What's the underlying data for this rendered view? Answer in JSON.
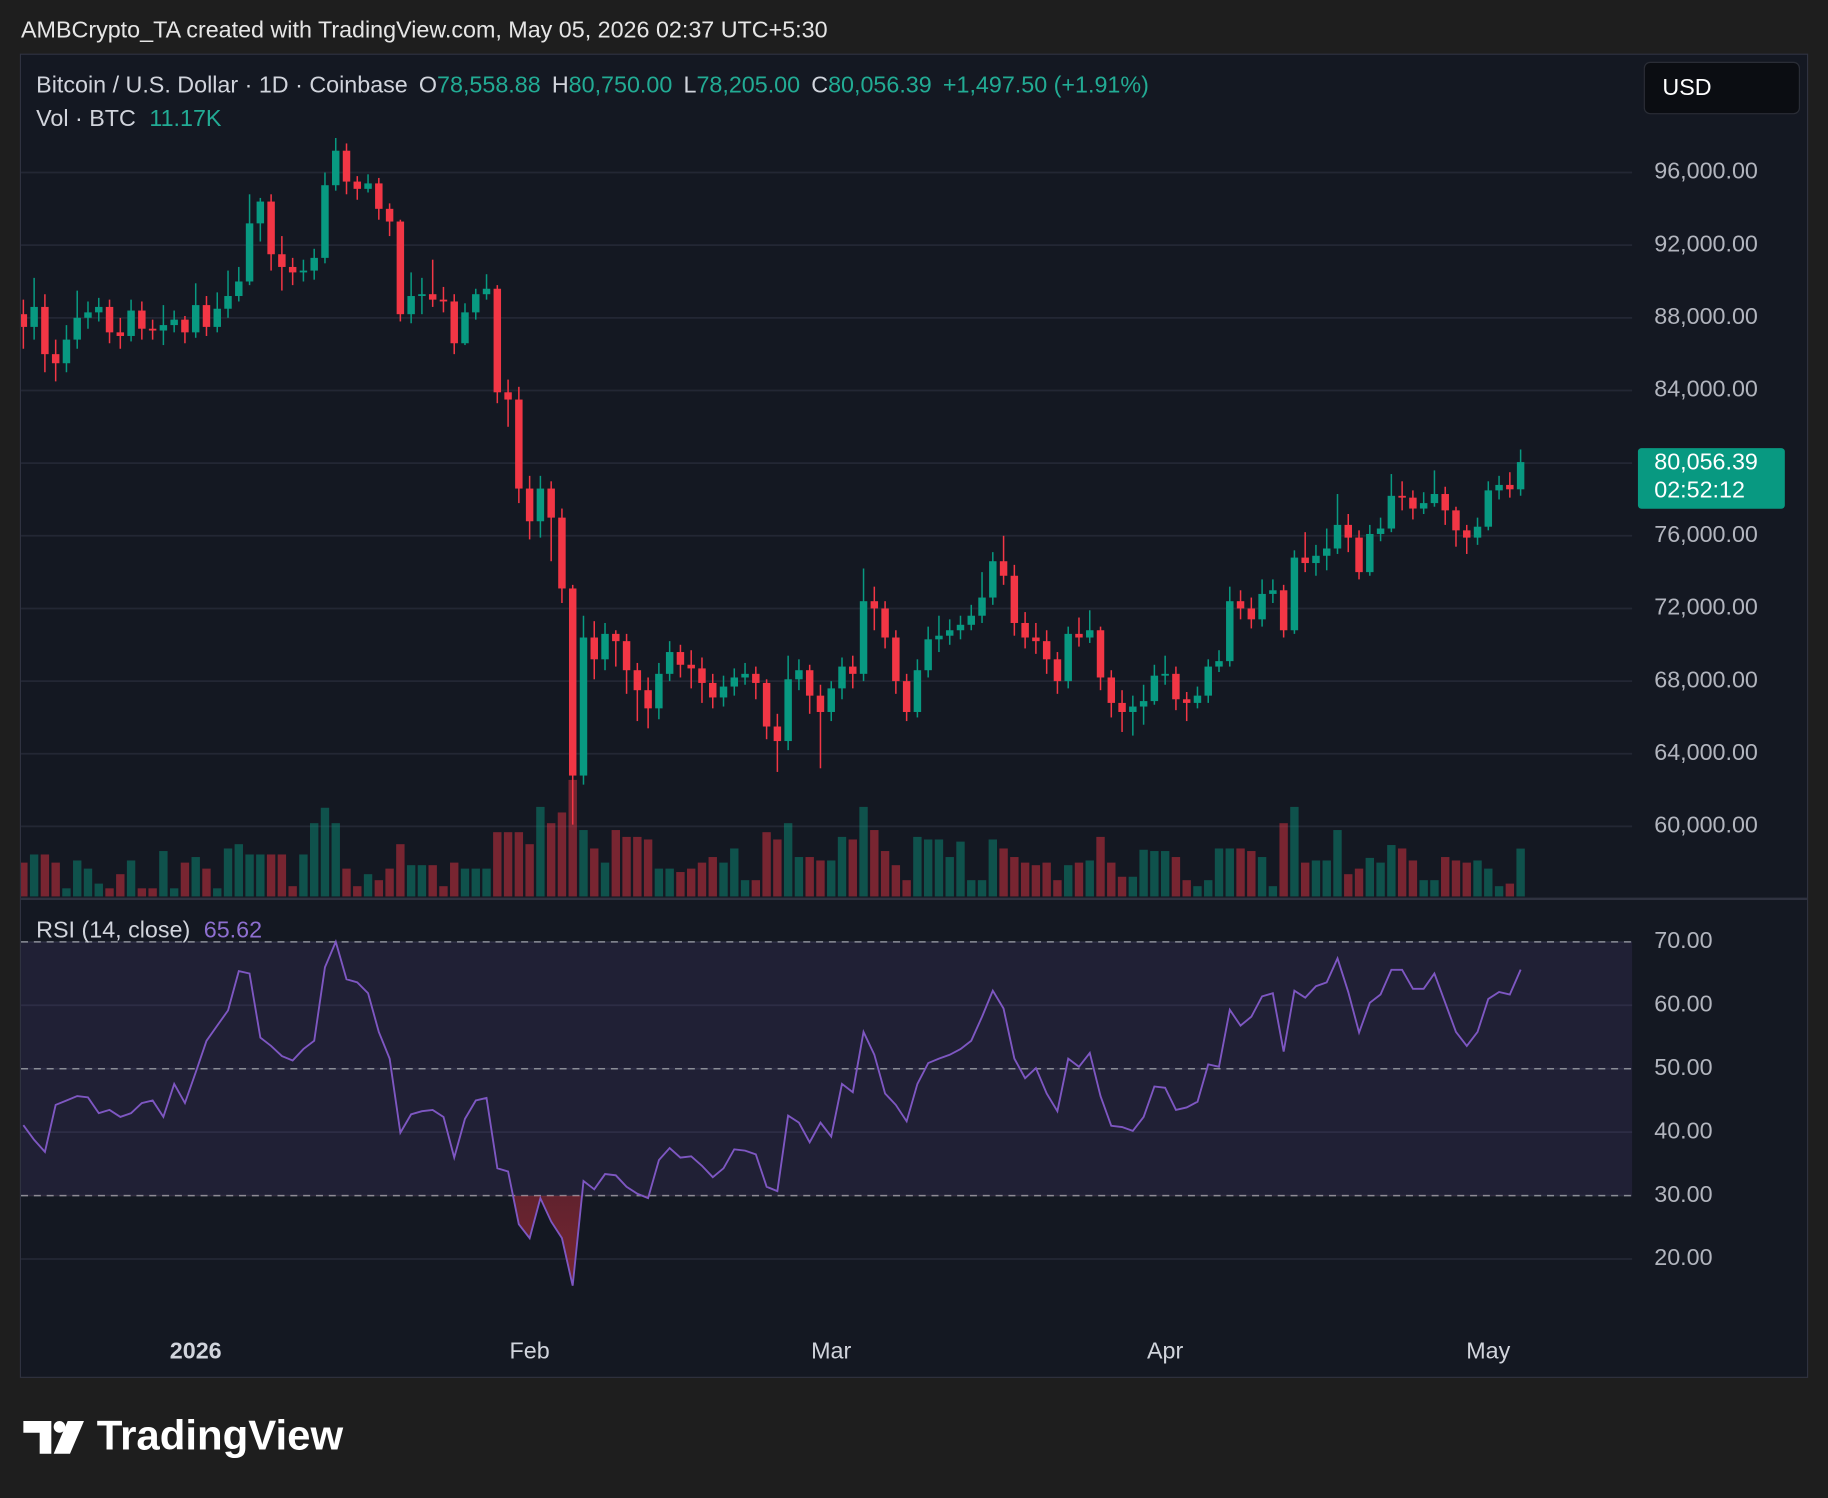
{
  "attribution": "AMBCrypto_TA created with TradingView.com, May 05, 2026 02:37 UTC+5:30",
  "brand": "TradingView",
  "chart_data": {
    "type": "candlestick",
    "legend": {
      "symbol": "Bitcoin / U.S. Dollar · 1D · Coinbase",
      "o": "O",
      "open": "78,558.88",
      "h": "H",
      "high": "80,750.00",
      "l": "L",
      "low": "78,205.00",
      "c": "C",
      "close": "80,056.39",
      "change": "+1,497.50 (+1.91%)",
      "volume_name": "Vol · BTC",
      "volume": "11.17K"
    },
    "currency": "USD",
    "price_label": "80,056.39",
    "countdown": "02:52:12",
    "up_color": "#089981",
    "down_color": "#f23645",
    "grid": true,
    "categories": [
      null,
      null,
      null,
      null,
      null,
      null,
      null,
      null,
      null,
      null,
      null,
      null,
      null,
      null,
      null,
      null,
      "2026",
      null,
      null,
      null,
      null,
      null,
      null,
      null,
      null,
      null,
      null,
      null,
      null,
      null,
      null,
      null,
      null,
      null,
      null,
      null,
      null,
      null,
      null,
      null,
      null,
      null,
      null,
      null,
      null,
      null,
      null,
      "Feb",
      null,
      null,
      null,
      null,
      null,
      null,
      null,
      null,
      null,
      null,
      null,
      null,
      null,
      null,
      null,
      null,
      null,
      null,
      null,
      null,
      null,
      null,
      null,
      null,
      null,
      null,
      null,
      "Mar",
      null,
      null,
      null,
      null,
      null,
      null,
      null,
      null,
      null,
      null,
      null,
      null,
      null,
      null,
      null,
      null,
      null,
      null,
      null,
      null,
      null,
      null,
      null,
      null,
      null,
      null,
      null,
      null,
      null,
      null,
      "Apr",
      null,
      null,
      null,
      null,
      null,
      null,
      null,
      null,
      null,
      null,
      null,
      null,
      null,
      null,
      null,
      null,
      null,
      null,
      null,
      null,
      null,
      null,
      null,
      null,
      null,
      null,
      null,
      null,
      null,
      "May",
      null,
      null,
      null
    ],
    "open": [
      88200,
      87500,
      88600,
      86000,
      85500,
      86800,
      88000,
      88300,
      88600,
      87200,
      87000,
      88400,
      87400,
      87300,
      87600,
      87900,
      87200,
      88700,
      87500,
      88500,
      89200,
      90000,
      93200,
      94400,
      91500,
      90800,
      90500,
      90600,
      91300,
      95300,
      97200,
      95500,
      95100,
      95400,
      94000,
      93300,
      88200,
      89200,
      89300,
      89000,
      88900,
      86600,
      88300,
      89300,
      89600,
      83900,
      83500,
      78600,
      76800,
      78600,
      77000,
      73100,
      62800,
      70400,
      69200,
      70600,
      70200,
      68600,
      67500,
      66500,
      68400,
      69600,
      68900,
      68700,
      67900,
      67100,
      67700,
      68200,
      68400,
      67900,
      65500,
      64700,
      68100,
      68600,
      67200,
      66300,
      67600,
      68800,
      68400,
      72400,
      72000,
      70400,
      68000,
      66300,
      68600,
      70300,
      70500,
      70800,
      71100,
      71600,
      72600,
      74600,
      73800,
      71200,
      70400,
      70200,
      69200,
      68000,
      70600,
      70400,
      70800,
      68200,
      66800,
      66300,
      66600,
      66900,
      68300,
      68400,
      67000,
      66800,
      67200,
      68800,
      69100,
      72400,
      72000,
      71400,
      72800,
      73000,
      70800,
      74800,
      74500,
      74900,
      75300,
      76600,
      75900,
      74000,
      76100,
      76400,
      78200,
      78100,
      77500,
      77800,
      78300,
      77400,
      76300,
      75900,
      76500,
      78500,
      78800,
      78558.88
    ],
    "high": [
      89000,
      90200,
      89300,
      86800,
      87600,
      89500,
      88900,
      89100,
      89000,
      88000,
      89000,
      88900,
      87900,
      88700,
      88400,
      88100,
      89900,
      89200,
      89400,
      90600,
      90800,
      94800,
      94600,
      94800,
      92500,
      91300,
      91200,
      91800,
      96000,
      97900,
      97600,
      95800,
      95900,
      95700,
      94300,
      93400,
      90500,
      90200,
      91200,
      89700,
      89300,
      88800,
      89600,
      90400,
      89800,
      84600,
      84200,
      79300,
      79300,
      79000,
      77500,
      73300,
      71600,
      71300,
      71200,
      70800,
      70600,
      69000,
      68200,
      69000,
      70200,
      70000,
      69700,
      69300,
      68400,
      68300,
      68700,
      69000,
      68800,
      68100,
      66200,
      69400,
      69200,
      68900,
      67800,
      68000,
      69300,
      69400,
      74200,
      73200,
      72400,
      70800,
      68400,
      69200,
      71000,
      71600,
      71400,
      71600,
      72200,
      74000,
      75100,
      76000,
      74400,
      71800,
      71200,
      70800,
      69600,
      71000,
      71500,
      71900,
      71000,
      68600,
      67500,
      67200,
      67800,
      68900,
      69400,
      68800,
      67400,
      67700,
      69200,
      69700,
      73200,
      73000,
      72600,
      73600,
      73600,
      73300,
      75200,
      76200,
      75500,
      76400,
      78300,
      77200,
      76300,
      76600,
      77000,
      79400,
      79000,
      78500,
      78400,
      79600,
      78700,
      77600,
      76600,
      77000,
      79000,
      79300,
      79500,
      80750
    ],
    "low": [
      86300,
      86800,
      85000,
      84500,
      85000,
      86300,
      87400,
      87800,
      86600,
      86300,
      86700,
      86800,
      86800,
      86500,
      87200,
      86600,
      86900,
      87000,
      87200,
      88000,
      88900,
      89800,
      92200,
      90600,
      89500,
      89800,
      90000,
      90100,
      91000,
      95000,
      94800,
      94500,
      94900,
      93400,
      92500,
      87800,
      87700,
      88200,
      88600,
      88300,
      86000,
      86500,
      87900,
      89000,
      83300,
      82000,
      77800,
      75800,
      75900,
      74600,
      72300,
      60100,
      62300,
      68100,
      68600,
      68800,
      67300,
      65800,
      65400,
      65900,
      68000,
      68200,
      67600,
      66800,
      66500,
      66600,
      67200,
      67800,
      67000,
      64800,
      63000,
      64200,
      67500,
      66200,
      63200,
      65800,
      67000,
      67600,
      68000,
      70800,
      69800,
      67300,
      65800,
      66000,
      68200,
      69600,
      70000,
      70300,
      70800,
      71200,
      72200,
      73300,
      70500,
      69800,
      69500,
      68400,
      67300,
      67600,
      69900,
      70100,
      67500,
      66000,
      65200,
      65000,
      65600,
      66700,
      67800,
      66400,
      65800,
      66500,
      66800,
      68500,
      68800,
      71400,
      70900,
      71000,
      72300,
      70400,
      70600,
      74000,
      73800,
      74100,
      75000,
      75100,
      73600,
      73800,
      75700,
      76200,
      77400,
      76900,
      77200,
      77600,
      76600,
      75400,
      75000,
      75500,
      76300,
      78000,
      78100,
      78205
    ],
    "close": [
      87500,
      88600,
      86000,
      85500,
      86800,
      88000,
      88300,
      88600,
      87200,
      87000,
      88400,
      87400,
      87300,
      87600,
      87900,
      87200,
      88700,
      87500,
      88500,
      89200,
      90000,
      93200,
      94400,
      91500,
      90800,
      90500,
      90600,
      91300,
      95300,
      97200,
      95500,
      95100,
      95400,
      94000,
      93300,
      88200,
      89200,
      89300,
      89000,
      88900,
      86600,
      88300,
      89300,
      89600,
      83900,
      83500,
      78600,
      76800,
      78600,
      77000,
      73100,
      62800,
      70400,
      69200,
      70600,
      70200,
      68600,
      67500,
      66500,
      68400,
      69600,
      68900,
      68700,
      67900,
      67100,
      67700,
      68200,
      68400,
      67900,
      65500,
      64700,
      68100,
      68600,
      67200,
      66300,
      67600,
      68800,
      68400,
      72400,
      72000,
      70400,
      68000,
      66300,
      68600,
      70300,
      70500,
      70800,
      71100,
      71600,
      72600,
      74600,
      73800,
      71200,
      70400,
      70200,
      69200,
      68000,
      70600,
      70400,
      70800,
      68200,
      66800,
      66300,
      66600,
      66900,
      68300,
      68400,
      67000,
      66800,
      67200,
      68800,
      69100,
      72400,
      72000,
      71400,
      72800,
      73000,
      70800,
      74800,
      74500,
      74900,
      75300,
      76600,
      75900,
      74000,
      76100,
      76400,
      78200,
      78100,
      77500,
      77800,
      78300,
      77400,
      76300,
      75900,
      76500,
      78500,
      78800,
      78558.88,
      80056.39
    ],
    "volume": [
      7900,
      9800,
      9800,
      7900,
      1900,
      8400,
      6500,
      3000,
      1900,
      5200,
      8400,
      1900,
      1900,
      10600,
      1900,
      7900,
      9200,
      6500,
      1900,
      11200,
      12200,
      9800,
      9800,
      9800,
      9800,
      2400,
      9800,
      17100,
      20700,
      17100,
      6500,
      2400,
      5200,
      3800,
      6500,
      12200,
      7300,
      7300,
      7300,
      2400,
      7900,
      6500,
      6500,
      6500,
      15000,
      15000,
      15000,
      12200,
      20900,
      17100,
      19600,
      27200,
      15500,
      11200,
      7900,
      15500,
      13900,
      13900,
      13300,
      6500,
      6500,
      5700,
      6500,
      7900,
      9200,
      7900,
      11200,
      3800,
      3800,
      15000,
      13300,
      17100,
      9200,
      9200,
      8400,
      8400,
      13900,
      13300,
      20900,
      15500,
      10600,
      7300,
      3800,
      13900,
      13300,
      13300,
      9200,
      12800,
      3800,
      3800,
      13300,
      11200,
      9200,
      7900,
      7300,
      7900,
      3800,
      7300,
      7900,
      8400,
      13900,
      7900,
      4600,
      4600,
      10900,
      10600,
      10600,
      9200,
      3800,
      2400,
      3800,
      11200,
      11200,
      11200,
      10600,
      9200,
      2400,
      17100,
      20900,
      7900,
      8400,
      8400,
      15500,
      5200,
      6500,
      9000,
      7900,
      12000,
      11200,
      8400,
      3800,
      3800,
      9200,
      8400,
      7900,
      8400,
      6500,
      2400,
      3000,
      11170
    ],
    "ylim": [
      56080,
      102480
    ],
    "yticks": [
      {
        "value": 60000,
        "label": "60,000.00"
      },
      {
        "value": 64000,
        "label": "64,000.00"
      },
      {
        "value": 68000,
        "label": "68,000.00"
      },
      {
        "value": 72000,
        "label": "72,000.00"
      },
      {
        "value": 76000,
        "label": "76,000.00"
      },
      {
        "value": 80000,
        "label": "80,000.00"
      },
      {
        "value": 84000,
        "label": "84,000.00"
      },
      {
        "value": 88000,
        "label": "88,000.00"
      },
      {
        "value": 92000,
        "label": "92,000.00"
      },
      {
        "value": 96000,
        "label": "96,000.00"
      }
    ],
    "rsi": {
      "name": "RSI (14, close)",
      "color": "#7e57c2",
      "ylim": [
        9.9,
        76.6
      ],
      "yticks": [
        {
          "value": 20,
          "label": "20.00"
        },
        {
          "value": 30,
          "label": "30.00"
        },
        {
          "value": 40,
          "label": "40.00"
        },
        {
          "value": 50,
          "label": "50.00"
        },
        {
          "value": 60,
          "label": "60.00"
        },
        {
          "value": 70,
          "label": "70.00"
        }
      ],
      "levels": [
        70,
        50,
        30
      ],
      "values": [
        41.1,
        38.8,
        36.9,
        44.3,
        45,
        45.7,
        45.5,
        43,
        43.5,
        42.4,
        43,
        44.6,
        45,
        42.4,
        47.6,
        44.6,
        49.4,
        54.4,
        56.8,
        59.2,
        65.4,
        65,
        54.9,
        53.6,
        52,
        51.3,
        53.1,
        54.4,
        66,
        70,
        64.1,
        63.6,
        61.9,
        55.8,
        51.6,
        39.9,
        42.8,
        43.3,
        43.5,
        42.4,
        36,
        42.1,
        45,
        45.4,
        34.3,
        33.8,
        25.5,
        23.3,
        29.6,
        25.9,
        23.3,
        15.8,
        32.3,
        31,
        33.4,
        33.2,
        31.4,
        30.3,
        29.6,
        35.6,
        37.5,
        36,
        36.2,
        34.7,
        32.9,
        34.3,
        37.3,
        37.1,
        36.5,
        31.4,
        30.7,
        42.6,
        41.5,
        38.4,
        41.5,
        39.3,
        47.6,
        46.3,
        55.8,
        52.2,
        46.1,
        44.3,
        41.7,
        47.6,
        50.9,
        51.6,
        52.2,
        53.1,
        54.4,
        58.2,
        62.3,
        59.5,
        51.6,
        48.5,
        50.1,
        46.1,
        43.3,
        51.6,
        50.3,
        52.5,
        45.7,
        41,
        40.8,
        40.2,
        42.4,
        47.2,
        47,
        43.5,
        43.9,
        44.8,
        50.7,
        50.3,
        59.3,
        56.8,
        58.2,
        61.4,
        61.9,
        52.7,
        62.3,
        61.2,
        63,
        63.6,
        67.4,
        62.1,
        55.7,
        60.4,
        61.7,
        65.6,
        65.6,
        62.6,
        62.6,
        65,
        60.4,
        55.8,
        53.6,
        55.8,
        61,
        62.1,
        61.7,
        65.62
      ]
    }
  }
}
